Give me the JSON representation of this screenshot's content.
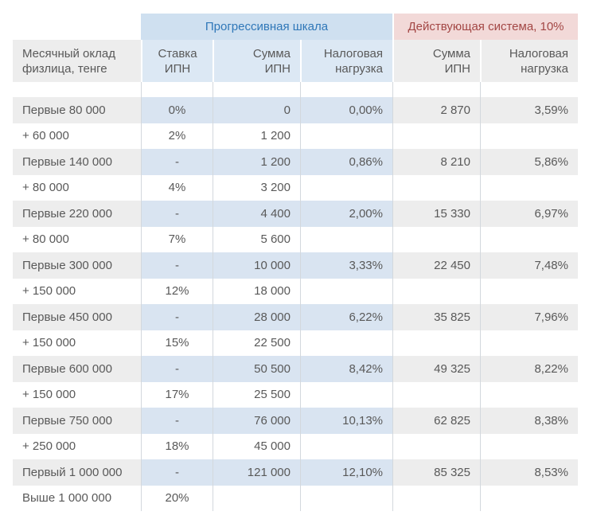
{
  "colors": {
    "banner_progressive_bg": "#cfe0f0",
    "banner_progressive_text": "#2f77b8",
    "banner_current_bg": "#f2d9d8",
    "banner_current_text": "#a34745",
    "header_blue_bg": "#dce8f4",
    "row_highlight_blue_bg": "#d9e4f1",
    "gray_cell_bg": "#ededed",
    "body_text": "#595959",
    "gridline": "#d3d8dd"
  },
  "table": {
    "banner": {
      "progressive": "Прогрессивная шкала",
      "current": "Действующая система, 10%"
    },
    "headers": {
      "salary": "Месячный оклад\nфизлица, тенге",
      "rate": "Ставка\nИПН",
      "sum": "Сумма\nИПН",
      "burden": "Налоговая\nнагрузка",
      "sum_current": "Сумма\nИПН",
      "burden_current": "Налоговая\nнагрузка"
    }
  },
  "chart_data": {
    "type": "table",
    "title": "",
    "column_groups": [
      {
        "label": "Прогрессивная шкала",
        "columns": [
          1,
          2,
          3
        ]
      },
      {
        "label": "Действующая система, 10%",
        "columns": [
          4,
          5
        ]
      }
    ],
    "columns": [
      "Месячный оклад физлица, тенге",
      "Ставка ИПН",
      "Сумма ИПН",
      "Налоговая нагрузка",
      "Сумма ИПН (действующая система)",
      "Налоговая нагрузка (действующая система)"
    ],
    "rows": [
      [
        "Первые 80 000",
        "0%",
        "0",
        "0,00%",
        "2 870",
        "3,59%"
      ],
      [
        "+ 60 000",
        "2%",
        "1 200",
        "",
        "",
        ""
      ],
      [
        "Первые 140 000",
        "-",
        "1 200",
        "0,86%",
        "8 210",
        "5,86%"
      ],
      [
        "+ 80 000",
        "4%",
        "3 200",
        "",
        "",
        ""
      ],
      [
        "Первые 220 000",
        "-",
        "4 400",
        "2,00%",
        "15 330",
        "6,97%"
      ],
      [
        "+ 80 000",
        "7%",
        "5 600",
        "",
        "",
        ""
      ],
      [
        "Первые 300 000",
        "-",
        "10 000",
        "3,33%",
        "22 450",
        "7,48%"
      ],
      [
        "+ 150 000",
        "12%",
        "18 000",
        "",
        "",
        ""
      ],
      [
        "Первые 450 000",
        "-",
        "28 000",
        "6,22%",
        "35 825",
        "7,96%"
      ],
      [
        "+ 150 000",
        "15%",
        "22 500",
        "",
        "",
        ""
      ],
      [
        "Первые 600 000",
        "-",
        "50 500",
        "8,42%",
        "49 325",
        "8,22%"
      ],
      [
        "+ 150 000",
        "17%",
        "25 500",
        "",
        "",
        ""
      ],
      [
        "Первые 750 000",
        "-",
        "76 000",
        "10,13%",
        "62 825",
        "8,38%"
      ],
      [
        "+ 250 000",
        "18%",
        "45 000",
        "",
        "",
        ""
      ],
      [
        "Первый 1 000 000",
        "-",
        "121 000",
        "12,10%",
        "85 325",
        "8,53%"
      ],
      [
        "Выше 1 000 000",
        "20%",
        "",
        "",
        "",
        ""
      ]
    ],
    "highlighted_rows": [
      0,
      2,
      4,
      6,
      8,
      10,
      12,
      14
    ]
  }
}
